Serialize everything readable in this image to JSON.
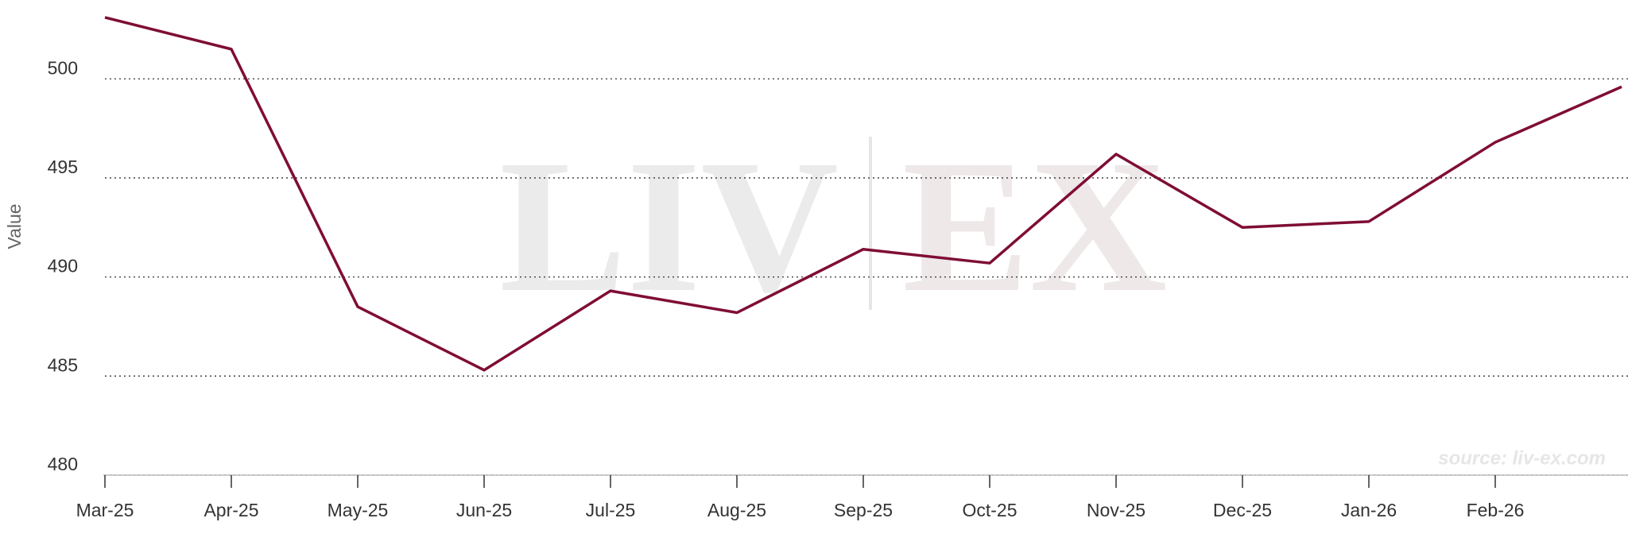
{
  "chart_data": {
    "type": "line",
    "y_label": "Value",
    "watermark": [
      "LIV",
      "EX"
    ],
    "source": "source: liv-ex.com",
    "categories": [
      "Mar-25",
      "Apr-25",
      "May-25",
      "Jun-25",
      "Jul-25",
      "Aug-25",
      "Sep-25",
      "Oct-25",
      "Nov-25",
      "Dec-25",
      "Jan-26",
      "Feb-26",
      null
    ],
    "series": [
      {
        "color": "#7f0d36",
        "values": [
          503.1,
          501.5,
          488.5,
          485.3,
          489.3,
          488.2,
          491.4,
          490.7,
          496.2,
          492.5,
          492.8,
          496.8,
          499.6
        ]
      }
    ],
    "ylim": [
      480,
      503.5
    ],
    "yticks": [
      480,
      485,
      490,
      495,
      500
    ],
    "grid": true
  }
}
